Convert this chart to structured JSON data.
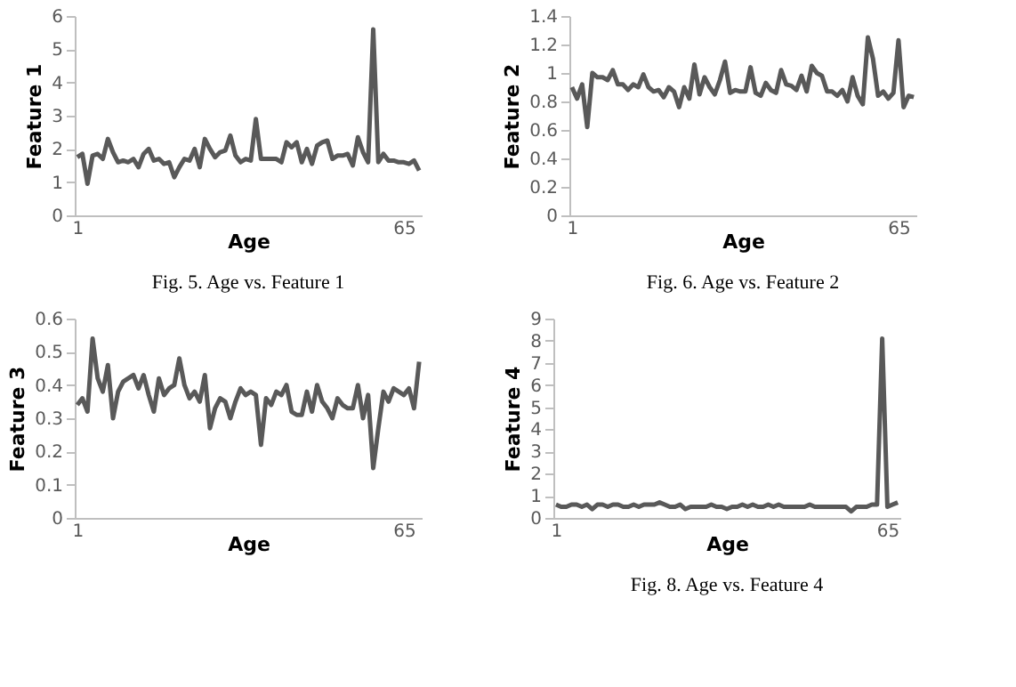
{
  "chart_data": [
    {
      "type": "line",
      "xlabel": "Age",
      "ylabel": "Feature 1",
      "annotations": [
        "Fig. 5.  Age vs. Feature 1"
      ],
      "categories": [
        "1",
        null,
        null,
        null,
        null,
        null,
        null,
        null,
        null,
        null,
        null,
        null,
        null,
        null,
        null,
        null,
        null,
        null,
        null,
        null,
        null,
        null,
        null,
        null,
        null,
        null,
        null,
        null,
        null,
        null,
        null,
        null,
        null,
        null,
        null,
        null,
        null,
        null,
        null,
        null,
        null,
        null,
        null,
        null,
        null,
        null,
        null,
        null,
        null,
        null,
        null,
        null,
        null,
        null,
        null,
        null,
        null,
        null,
        null,
        null,
        null,
        null,
        null,
        null,
        "65",
        null,
        null,
        null
      ],
      "series": [
        {
          "color": "#595959",
          "values": [
            1.75,
            1.85,
            0.95,
            1.8,
            1.85,
            1.7,
            2.3,
            1.9,
            1.6,
            1.65,
            1.6,
            1.7,
            1.45,
            1.85,
            2.0,
            1.65,
            1.7,
            1.55,
            1.6,
            1.15,
            1.45,
            1.7,
            1.65,
            2.0,
            1.45,
            2.3,
            2.0,
            1.75,
            1.9,
            1.95,
            2.4,
            1.8,
            1.6,
            1.7,
            1.65,
            2.9,
            1.7,
            1.7,
            1.7,
            1.7,
            1.6,
            2.2,
            2.05,
            2.2,
            1.6,
            2.0,
            1.55,
            2.1,
            2.2,
            2.25,
            1.7,
            1.8,
            1.8,
            1.85,
            1.5,
            2.35,
            1.9,
            1.6,
            5.6,
            1.6,
            1.85,
            1.65,
            1.65,
            1.6,
            1.6,
            1.55,
            1.65,
            1.35
          ]
        }
      ],
      "ylim": [
        0,
        6
      ],
      "yticks": [
        0,
        1,
        2,
        3,
        4,
        5,
        6
      ],
      "grid": false
    },
    {
      "type": "line",
      "xlabel": "Age",
      "ylabel": "Feature 2",
      "annotations": [
        "Fig. 6.  Age vs. Feature 2"
      ],
      "categories": [
        "1",
        null,
        null,
        null,
        null,
        null,
        null,
        null,
        null,
        null,
        null,
        null,
        null,
        null,
        null,
        null,
        null,
        null,
        null,
        null,
        null,
        null,
        null,
        null,
        null,
        null,
        null,
        null,
        null,
        null,
        null,
        null,
        null,
        null,
        null,
        null,
        null,
        null,
        null,
        null,
        null,
        null,
        null,
        null,
        null,
        null,
        null,
        null,
        null,
        null,
        null,
        null,
        null,
        null,
        null,
        null,
        null,
        null,
        null,
        null,
        null,
        null,
        null,
        null,
        "65",
        null,
        null,
        null
      ],
      "series": [
        {
          "color": "#595959",
          "values": [
            0.9,
            0.82,
            0.92,
            0.62,
            1.0,
            0.97,
            0.97,
            0.95,
            1.02,
            0.92,
            0.92,
            0.88,
            0.92,
            0.9,
            0.99,
            0.9,
            0.87,
            0.88,
            0.83,
            0.9,
            0.87,
            0.76,
            0.9,
            0.82,
            1.06,
            0.85,
            0.97,
            0.9,
            0.85,
            0.95,
            1.08,
            0.86,
            0.88,
            0.87,
            0.87,
            1.04,
            0.86,
            0.84,
            0.93,
            0.88,
            0.86,
            1.02,
            0.92,
            0.91,
            0.88,
            0.98,
            0.87,
            1.05,
            1.0,
            0.98,
            0.87,
            0.87,
            0.84,
            0.88,
            0.8,
            0.97,
            0.84,
            0.78,
            1.25,
            1.1,
            0.84,
            0.87,
            0.82,
            0.86,
            1.23,
            0.76,
            0.84,
            0.83
          ]
        }
      ],
      "ylim": [
        0,
        1.4
      ],
      "yticks": [
        {
          "value": 0,
          "label": "0"
        },
        {
          "value": 0.2,
          "label": "0.2"
        },
        {
          "value": 0.4,
          "label": "0.4"
        },
        {
          "value": 0.6,
          "label": "0.6"
        },
        {
          "value": 0.8,
          "label": "0.8"
        },
        {
          "value": 1,
          "label": "1"
        },
        {
          "value": 1.2,
          "label": "1.2"
        },
        {
          "value": 1.4,
          "label": "1.4"
        }
      ],
      "grid": false
    },
    {
      "type": "line",
      "xlabel": "Age",
      "ylabel": "Feature 3",
      "categories": [
        "1",
        null,
        null,
        null,
        null,
        null,
        null,
        null,
        null,
        null,
        null,
        null,
        null,
        null,
        null,
        null,
        null,
        null,
        null,
        null,
        null,
        null,
        null,
        null,
        null,
        null,
        null,
        null,
        null,
        null,
        null,
        null,
        null,
        null,
        null,
        null,
        null,
        null,
        null,
        null,
        null,
        null,
        null,
        null,
        null,
        null,
        null,
        null,
        null,
        null,
        null,
        null,
        null,
        null,
        null,
        null,
        null,
        null,
        null,
        null,
        null,
        null,
        null,
        null,
        "65",
        null,
        null,
        null
      ],
      "series": [
        {
          "color": "#595959",
          "values": [
            0.34,
            0.36,
            0.32,
            0.54,
            0.42,
            0.38,
            0.46,
            0.3,
            0.38,
            0.41,
            0.42,
            0.43,
            0.39,
            0.43,
            0.37,
            0.32,
            0.42,
            0.37,
            0.39,
            0.4,
            0.48,
            0.4,
            0.36,
            0.38,
            0.35,
            0.43,
            0.27,
            0.33,
            0.36,
            0.35,
            0.3,
            0.35,
            0.39,
            0.37,
            0.38,
            0.37,
            0.22,
            0.36,
            0.34,
            0.38,
            0.37,
            0.4,
            0.32,
            0.31,
            0.31,
            0.38,
            0.32,
            0.4,
            0.35,
            0.33,
            0.3,
            0.36,
            0.34,
            0.33,
            0.33,
            0.4,
            0.3,
            0.37,
            0.15,
            0.27,
            0.38,
            0.35,
            0.39,
            0.38,
            0.37,
            0.39,
            0.33,
            0.47
          ]
        }
      ],
      "ylim": [
        0,
        0.6
      ],
      "yticks": [
        0,
        0.1,
        0.2,
        0.3,
        0.4,
        0.5,
        0.6
      ],
      "grid": false
    },
    {
      "type": "line",
      "xlabel": "Age",
      "ylabel": "Feature 4",
      "annotations": [
        "Fig. 8.  Age vs. Feature 4"
      ],
      "categories": [
        "1",
        null,
        null,
        null,
        null,
        null,
        null,
        null,
        null,
        null,
        null,
        null,
        null,
        null,
        null,
        null,
        null,
        null,
        null,
        null,
        null,
        null,
        null,
        null,
        null,
        null,
        null,
        null,
        null,
        null,
        null,
        null,
        null,
        null,
        null,
        null,
        null,
        null,
        null,
        null,
        null,
        null,
        null,
        null,
        null,
        null,
        null,
        null,
        null,
        null,
        null,
        null,
        null,
        null,
        null,
        null,
        null,
        null,
        null,
        null,
        null,
        null,
        null,
        null,
        "65",
        null,
        null
      ],
      "series": [
        {
          "color": "#595959",
          "values": [
            0.6,
            0.5,
            0.5,
            0.6,
            0.6,
            0.5,
            0.6,
            0.4,
            0.6,
            0.6,
            0.5,
            0.6,
            0.6,
            0.5,
            0.5,
            0.6,
            0.5,
            0.6,
            0.6,
            0.6,
            0.7,
            0.6,
            0.5,
            0.5,
            0.6,
            0.4,
            0.5,
            0.5,
            0.5,
            0.5,
            0.6,
            0.5,
            0.5,
            0.4,
            0.5,
            0.5,
            0.6,
            0.5,
            0.6,
            0.5,
            0.5,
            0.6,
            0.5,
            0.6,
            0.5,
            0.5,
            0.5,
            0.5,
            0.5,
            0.6,
            0.5,
            0.5,
            0.5,
            0.5,
            0.5,
            0.5,
            0.5,
            0.3,
            0.5,
            0.5,
            0.5,
            0.6,
            0.6,
            8.1,
            0.5,
            0.6,
            0.7
          ]
        }
      ],
      "ylim": [
        0,
        9
      ],
      "yticks": [
        0,
        1,
        2,
        3,
        4,
        5,
        6,
        7,
        8,
        9
      ],
      "grid": false
    }
  ]
}
